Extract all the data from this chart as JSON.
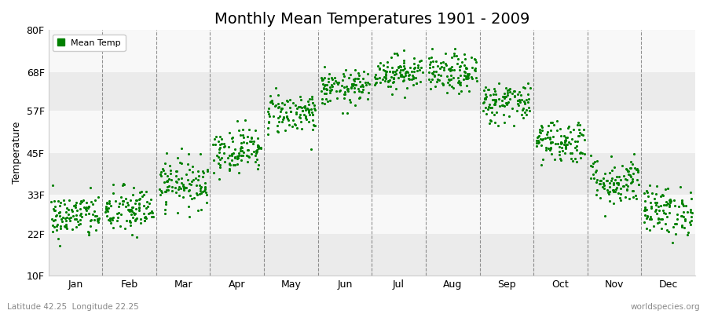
{
  "title": "Monthly Mean Temperatures 1901 - 2009",
  "ylabel": "Temperature",
  "xlabel": "",
  "bottom_left_label": "Latitude 42.25  Longitude 22.25",
  "bottom_right_label": "worldspecies.org",
  "legend_label": "Mean Temp",
  "ytick_labels": [
    "10F",
    "22F",
    "33F",
    "45F",
    "57F",
    "68F",
    "80F"
  ],
  "ytick_values": [
    10,
    22,
    33,
    45,
    57,
    68,
    80
  ],
  "ylim": [
    10,
    80
  ],
  "months": [
    "Jan",
    "Feb",
    "Mar",
    "Apr",
    "May",
    "Jun",
    "Jul",
    "Aug",
    "Sep",
    "Oct",
    "Nov",
    "Dec"
  ],
  "dot_color": "#008000",
  "bg_color": "#ffffff",
  "num_years": 109,
  "monthly_mean_temps": [
    27.0,
    28.5,
    36.5,
    46.0,
    56.5,
    63.5,
    68.0,
    67.5,
    59.5,
    48.5,
    37.0,
    28.5
  ],
  "monthly_std_temps": [
    3.2,
    3.5,
    3.5,
    3.2,
    3.0,
    2.5,
    2.5,
    2.8,
    3.0,
    3.2,
    3.5,
    3.5
  ],
  "band_colors_even": "#ebebeb",
  "band_colors_odd": "#f8f8f8",
  "vline_color": "#666666",
  "title_fontsize": 14,
  "label_fontsize": 9,
  "ylabel_fontsize": 9,
  "dot_size": 5
}
